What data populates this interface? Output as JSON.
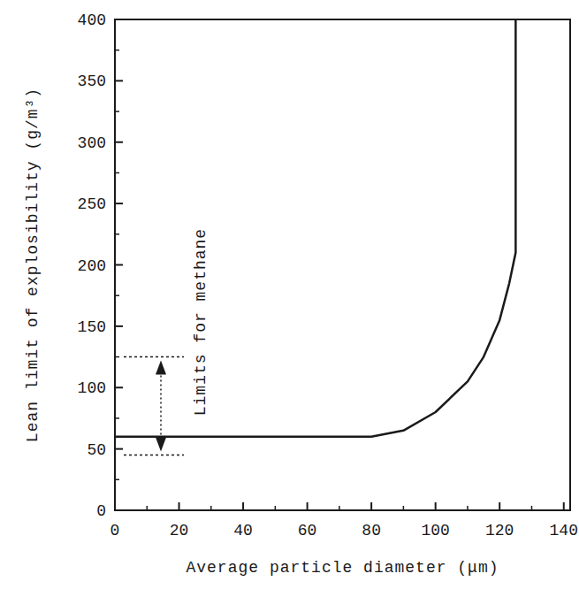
{
  "chart_data": {
    "type": "line",
    "x_label": "Average particle diameter (μm)",
    "y_label": "Lean limit of explosibility (g/m³)",
    "x": [
      0,
      80,
      90,
      100,
      110,
      115,
      120,
      123,
      125,
      125
    ],
    "series": [
      {
        "color": "#1a1a1a",
        "values": [
          60,
          60,
          65,
          80,
          105,
          125,
          155,
          185,
          210,
          400
        ]
      }
    ],
    "xlim": [
      0,
      142
    ],
    "ylim": [
      0,
      400
    ],
    "xticks": [
      0,
      20,
      40,
      60,
      80,
      100,
      120,
      140
    ],
    "yticks": [
      0,
      50,
      100,
      150,
      200,
      250,
      300,
      350,
      400
    ],
    "grid": false,
    "annotations": [
      {
        "text": "Limits for methane",
        "y": [
          45,
          125
        ]
      }
    ]
  }
}
